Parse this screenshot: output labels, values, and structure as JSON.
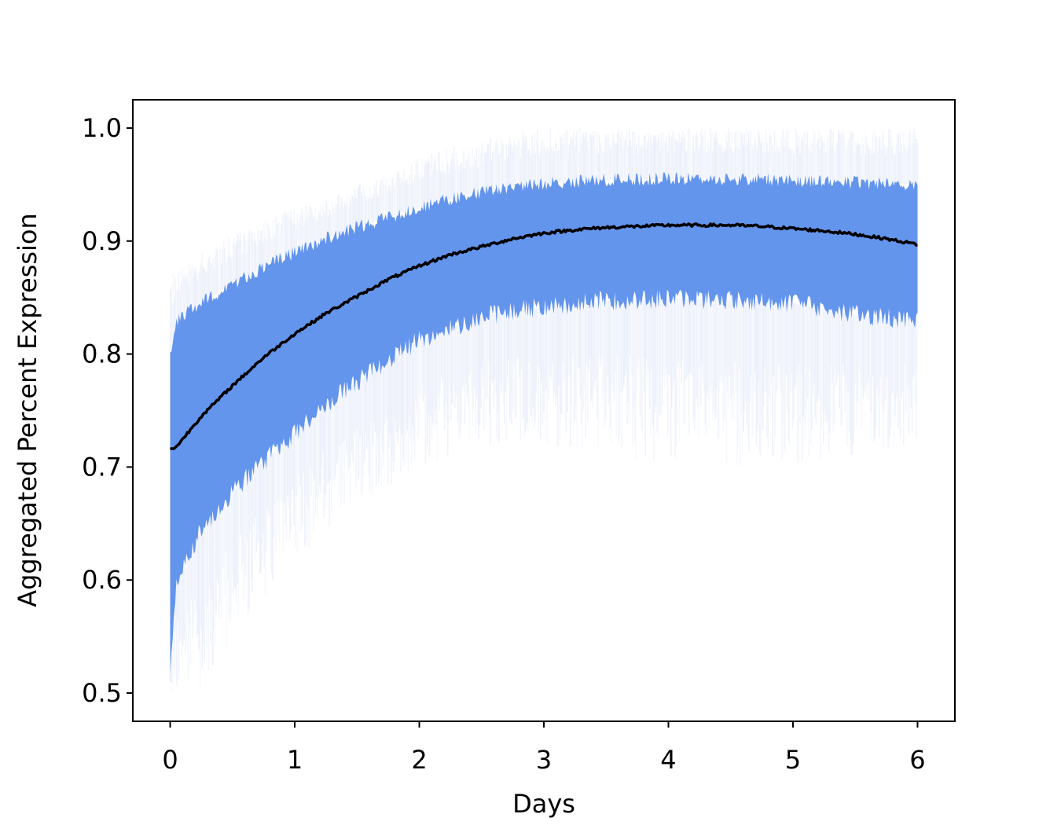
{
  "chart_data": {
    "type": "line",
    "title": "",
    "xlabel": "Days",
    "ylabel": "Aggregated Percent Expression",
    "xlim": [
      -0.3,
      6.3
    ],
    "ylim": [
      0.475,
      1.025
    ],
    "xticks": [
      0,
      1,
      2,
      3,
      4,
      5,
      6
    ],
    "xtick_labels": [
      "0",
      "1",
      "2",
      "3",
      "4",
      "5",
      "6"
    ],
    "yticks": [
      0.5,
      0.6,
      0.7,
      0.8,
      0.9,
      1.0
    ],
    "ytick_labels": [
      "0.5",
      "0.6",
      "0.7",
      "0.8",
      "0.9",
      "1.0"
    ],
    "grid": false,
    "colors": {
      "band": "#6495ED",
      "faint": "#c9d4f2",
      "mean": "#000000"
    },
    "series": [
      {
        "role": "mean",
        "x": [
          0,
          0.05,
          0.25,
          0.5,
          0.75,
          1.0,
          1.25,
          1.5,
          1.75,
          2.0,
          2.25,
          2.5,
          2.75,
          3.0,
          3.25,
          3.5,
          3.75,
          4.0,
          4.25,
          4.5,
          4.75,
          5.0,
          5.25,
          5.5,
          5.75,
          6.0
        ],
        "y": [
          0.716,
          0.718,
          0.745,
          0.772,
          0.797,
          0.818,
          0.836,
          0.851,
          0.866,
          0.878,
          0.888,
          0.895,
          0.902,
          0.907,
          0.91,
          0.912,
          0.913,
          0.914,
          0.914,
          0.914,
          0.913,
          0.911,
          0.909,
          0.906,
          0.902,
          0.897
        ]
      },
      {
        "role": "band-upper",
        "x": [
          0,
          0.05,
          0.25,
          0.5,
          0.75,
          1.0,
          1.25,
          1.5,
          1.75,
          2.0,
          2.25,
          2.5,
          2.75,
          3.0,
          3.5,
          4.0,
          4.5,
          5.0,
          5.5,
          6.0
        ],
        "y": [
          0.8,
          0.83,
          0.845,
          0.862,
          0.877,
          0.89,
          0.902,
          0.912,
          0.921,
          0.93,
          0.937,
          0.943,
          0.948,
          0.951,
          0.954,
          0.955,
          0.955,
          0.954,
          0.952,
          0.95
        ]
      },
      {
        "role": "band-lower",
        "x": [
          0,
          0.05,
          0.25,
          0.5,
          0.75,
          1.0,
          1.25,
          1.5,
          1.75,
          2.0,
          2.25,
          2.5,
          2.75,
          3.0,
          3.5,
          4.0,
          4.5,
          5.0,
          5.5,
          6.0
        ],
        "y": [
          0.52,
          0.6,
          0.645,
          0.678,
          0.705,
          0.73,
          0.755,
          0.775,
          0.795,
          0.812,
          0.823,
          0.833,
          0.838,
          0.842,
          0.847,
          0.849,
          0.848,
          0.845,
          0.835,
          0.83
        ]
      },
      {
        "role": "spread-upper",
        "x": [
          0,
          0.25,
          0.5,
          1.0,
          1.5,
          2.0,
          2.5,
          3.0,
          4.0,
          5.0,
          6.0
        ],
        "y": [
          0.87,
          0.89,
          0.905,
          0.93,
          0.95,
          0.975,
          0.99,
          1.0,
          1.0,
          1.0,
          1.0
        ]
      },
      {
        "role": "spread-lower",
        "x": [
          0,
          0.25,
          0.5,
          1.0,
          1.5,
          2.0,
          2.5,
          3.0,
          4.0,
          5.0,
          6.0
        ],
        "y": [
          0.5,
          0.5,
          0.55,
          0.62,
          0.66,
          0.7,
          0.72,
          0.72,
          0.7,
          0.7,
          0.72
        ]
      }
    ]
  }
}
